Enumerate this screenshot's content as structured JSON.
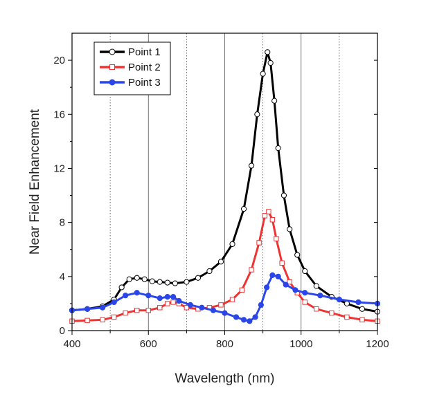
{
  "chart_data": {
    "type": "line",
    "title": "",
    "xlabel": "Wavelength (nm)",
    "ylabel": "Near Field Enhancement",
    "xlim": [
      400,
      1200
    ],
    "ylim": [
      0,
      22
    ],
    "x_ticks": [
      400,
      600,
      800,
      1000,
      1200
    ],
    "y_ticks": [
      0,
      4,
      8,
      12,
      16,
      20
    ],
    "x_minor_grid": [
      500,
      700,
      900,
      1100
    ],
    "grid": "vertical dotted lines at 500, 700, 900, 1100 nm",
    "legend_position": "top-left",
    "series": [
      {
        "name": "Point 1",
        "color": "#000000",
        "marker": "open-circle",
        "x": [
          400,
          440,
          480,
          510,
          530,
          550,
          570,
          590,
          610,
          630,
          650,
          670,
          700,
          730,
          760,
          790,
          820,
          850,
          870,
          885,
          900,
          912,
          920,
          930,
          940,
          955,
          970,
          990,
          1010,
          1040,
          1080,
          1120,
          1160,
          1200
        ],
        "y": [
          1.5,
          1.6,
          1.8,
          2.3,
          3.2,
          3.8,
          3.9,
          3.8,
          3.65,
          3.6,
          3.55,
          3.5,
          3.6,
          3.9,
          4.4,
          5.1,
          6.4,
          9.0,
          12.2,
          16.0,
          19.0,
          20.6,
          19.8,
          17.0,
          13.5,
          10.0,
          7.5,
          5.6,
          4.4,
          3.3,
          2.5,
          2.0,
          1.6,
          1.4
        ]
      },
      {
        "name": "Point 2",
        "color": "#ee3333",
        "marker": "open-square",
        "x": [
          400,
          440,
          480,
          510,
          540,
          570,
          600,
          630,
          650,
          665,
          680,
          700,
          730,
          760,
          790,
          820,
          845,
          870,
          890,
          905,
          915,
          925,
          935,
          950,
          970,
          990,
          1010,
          1040,
          1080,
          1120,
          1160,
          1200
        ],
        "y": [
          0.7,
          0.75,
          0.8,
          1.0,
          1.3,
          1.5,
          1.5,
          1.7,
          2.0,
          2.1,
          2.0,
          1.7,
          1.6,
          1.7,
          1.9,
          2.3,
          3.0,
          4.5,
          6.5,
          8.5,
          8.8,
          8.2,
          6.8,
          5.0,
          3.6,
          2.8,
          2.1,
          1.6,
          1.3,
          1.0,
          0.8,
          0.7
        ]
      },
      {
        "name": "Point 3",
        "color": "#2a46e8",
        "marker": "filled-circle",
        "x": [
          400,
          440,
          480,
          510,
          540,
          570,
          600,
          630,
          650,
          665,
          680,
          710,
          740,
          770,
          800,
          830,
          850,
          865,
          880,
          895,
          910,
          925,
          940,
          960,
          985,
          1010,
          1050,
          1100,
          1150,
          1200
        ],
        "y": [
          1.5,
          1.6,
          1.7,
          2.1,
          2.6,
          2.8,
          2.6,
          2.4,
          2.5,
          2.5,
          2.2,
          1.9,
          1.7,
          1.5,
          1.3,
          1.0,
          0.8,
          0.7,
          1.0,
          1.9,
          3.2,
          4.1,
          4.0,
          3.4,
          3.0,
          2.8,
          2.6,
          2.3,
          2.1,
          2.0
        ]
      }
    ]
  }
}
